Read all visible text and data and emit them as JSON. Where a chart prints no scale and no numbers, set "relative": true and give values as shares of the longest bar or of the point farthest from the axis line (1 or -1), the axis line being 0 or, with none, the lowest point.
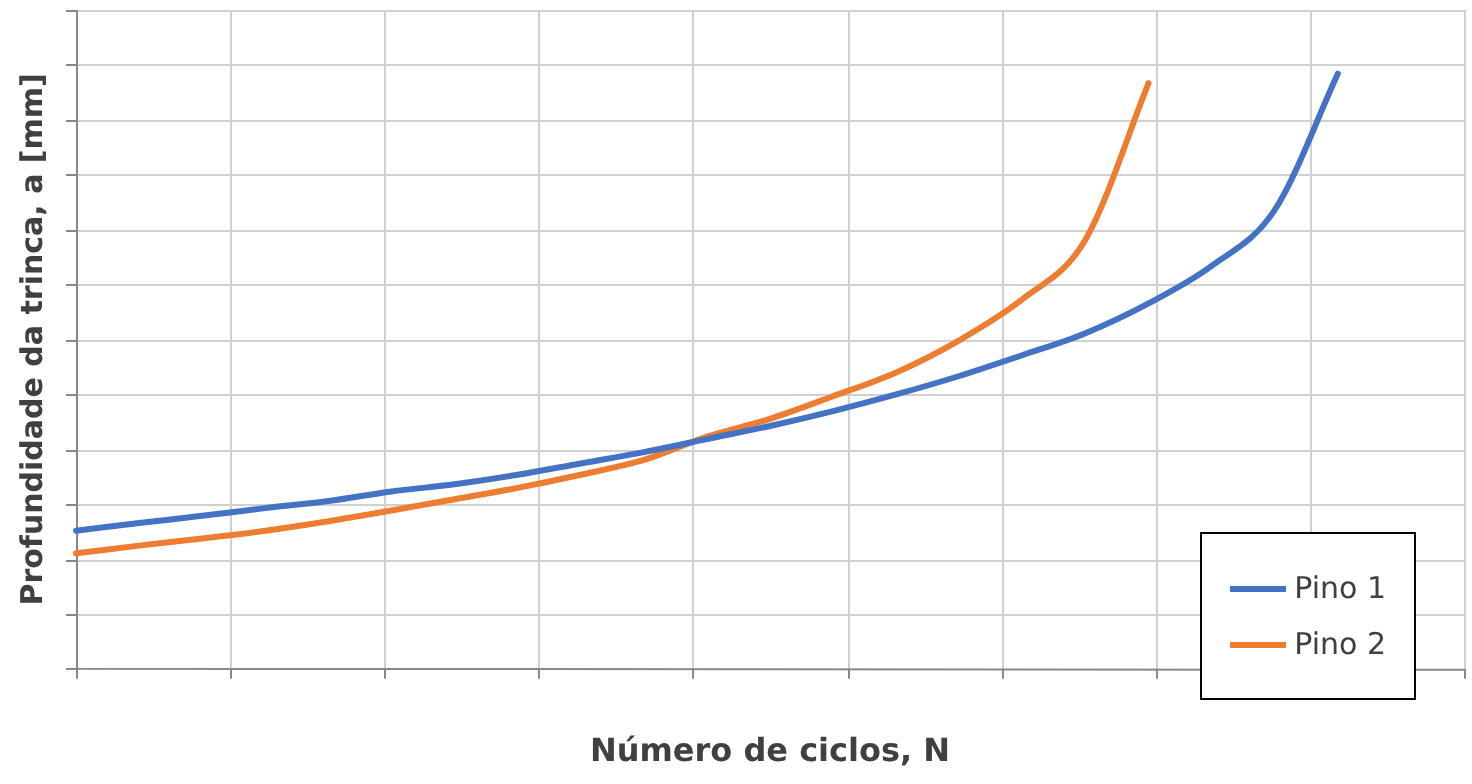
{
  "chart_data": {
    "type": "line",
    "relative": true,
    "xlabel": "Número de ciclos, N",
    "ylabel": "Profundidade da trinca, a [mm]",
    "categories": [
      null,
      null,
      null,
      null,
      null,
      null,
      null,
      null,
      null,
      null,
      null,
      null,
      null,
      null,
      null,
      null,
      null,
      null,
      null,
      null,
      null,
      null,
      null
    ],
    "series": [
      {
        "name": "Pino 1",
        "color": "#4472c4",
        "values": [
          0.232,
          0.245,
          0.257,
          0.27,
          0.282,
          0.298,
          0.31,
          0.326,
          0.345,
          0.364,
          0.386,
          0.408,
          0.433,
          0.461,
          0.492,
          0.527,
          0.564,
          0.614,
          0.677,
          0.771,
          1,
          null,
          null
        ]
      },
      {
        "name": "Pino 2",
        "color": "#ed7d31",
        "values": [
          0.194,
          0.207,
          0.219,
          0.232,
          0.248,
          0.266,
          0.285,
          0.304,
          0.326,
          0.351,
          0.39,
          0.42,
          0.458,
          0.498,
          0.552,
          0.621,
          0.721,
          0.984,
          null,
          null,
          null,
          null,
          null
        ]
      }
    ],
    "grid": true,
    "legend": "bottom right",
    "marker": "none",
    "line_style": "solid"
  }
}
